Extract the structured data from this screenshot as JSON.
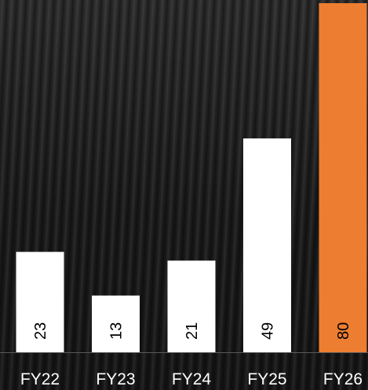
{
  "chart_data": {
    "type": "bar",
    "categories": [
      "FY22",
      "FY23",
      "FY24",
      "FY25",
      "FY26"
    ],
    "values": [
      23,
      13,
      21,
      49,
      80
    ],
    "highlight_index": 4,
    "colors": {
      "bar": "#ffffff",
      "highlight": "#ed7d31",
      "axis": "#595959",
      "tick_text": "#ffffff",
      "value_text": "#000000"
    },
    "ylim": [
      0,
      80
    ],
    "grid": false,
    "legend": "none",
    "title": "",
    "xlabel": "",
    "ylabel": ""
  }
}
